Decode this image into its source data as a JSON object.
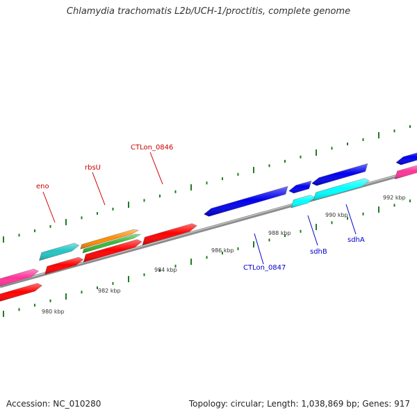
{
  "title": "Chlamydia trachomatis L2b/UCH-1/proctitis, complete genome",
  "footer": {
    "accession": "Accession: NC_010280",
    "summary": "Topology: circular; Length: 1,038,869 bp; Genes: 917"
  },
  "colors": {
    "backbone": "#8c8c8c",
    "tick": "#1f7a1f",
    "label_red": "#cc0000",
    "label_blue": "#0000cc"
  },
  "scale_labels": [
    "980 kbp",
    "982 kbp",
    "984 kbp",
    "986 kbp",
    "988 kbp",
    "990 kbp",
    "992 kbp"
  ],
  "features": [
    {
      "color": "#ff3399"
    },
    {
      "color": "#ff0000"
    },
    {
      "color": "#22c4c4"
    },
    {
      "color": "#ff0000"
    },
    {
      "color": "#ff8c00"
    },
    {
      "color": "#33bb33"
    },
    {
      "color": "#ff0000"
    },
    {
      "color": "#ff0000"
    },
    {
      "color": "#0000ee"
    },
    {
      "color": "#0000ee"
    },
    {
      "color": "#00ffff"
    },
    {
      "color": "#0000ee"
    },
    {
      "color": "#00ffff"
    },
    {
      "color": "#0000ee"
    },
    {
      "color": "#ff3399"
    }
  ],
  "gene_labels": [
    {
      "text": "eno",
      "color": "#cc0000"
    },
    {
      "text": "rbsU",
      "color": "#cc0000"
    },
    {
      "text": "CTLon_0846",
      "color": "#cc0000"
    },
    {
      "text": "CTLon_0847",
      "color": "#0000cc"
    },
    {
      "text": "sdhB",
      "color": "#0000cc"
    },
    {
      "text": "sdhA",
      "color": "#0000cc"
    }
  ]
}
